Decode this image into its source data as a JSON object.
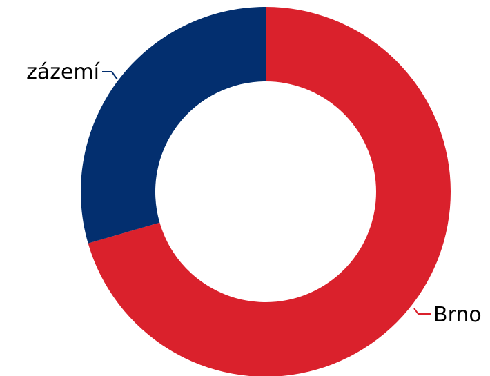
{
  "chart_data": {
    "type": "pie",
    "donut": true,
    "title": "",
    "legend": "none",
    "slices": [
      {
        "label": "Brno",
        "value": 70.5,
        "color": "#DA212C"
      },
      {
        "label": "zázemí",
        "value": 29.5,
        "color": "#032F6F"
      }
    ]
  }
}
